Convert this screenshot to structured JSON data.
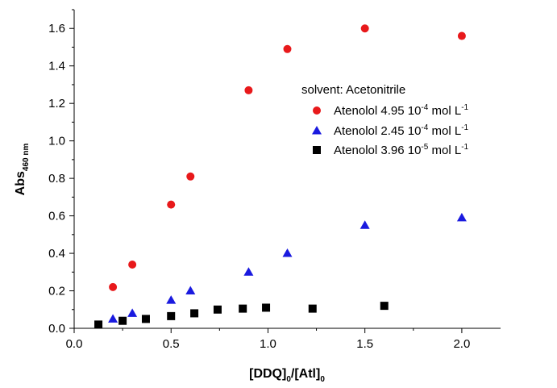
{
  "chart_data": {
    "type": "scatter",
    "xlabel": "[DDQ]",
    "xlabel_sub1": "0",
    "xlabel_mid": "/[Atl]",
    "xlabel_sub2": "0",
    "ylabel": "Abs",
    "ylabel_sub": "460 nm",
    "xlim": [
      0,
      2.2
    ],
    "ylim": [
      0,
      1.7
    ],
    "x_ticks": [
      {
        "value": 0.0,
        "label": "0.0"
      },
      {
        "value": 0.5,
        "label": "0.5"
      },
      {
        "value": 1.0,
        "label": "1.0"
      },
      {
        "value": 1.5,
        "label": "1.5"
      },
      {
        "value": 2.0,
        "label": "2.0"
      }
    ],
    "y_ticks": [
      {
        "value": 0.0,
        "label": "0.0"
      },
      {
        "value": 0.2,
        "label": "0.2"
      },
      {
        "value": 0.4,
        "label": "0.4"
      },
      {
        "value": 0.6,
        "label": "0.6"
      },
      {
        "value": 0.8,
        "label": "0.8"
      },
      {
        "value": 1.0,
        "label": "1.0"
      },
      {
        "value": 1.2,
        "label": "1.2"
      },
      {
        "value": 1.4,
        "label": "1.4"
      },
      {
        "value": 1.6,
        "label": "1.6"
      }
    ],
    "grid": false,
    "legend_placement": "right",
    "legend_title": "solvent: Acetonitrile",
    "series": [
      {
        "name": "Atenolol 4.95 10",
        "name_exp": "-4",
        "name_unit": " mol L",
        "name_unit_exp": "-1",
        "marker": "circle",
        "color": "#e8191b",
        "x": [
          0.2,
          0.3,
          0.5,
          0.6,
          0.9,
          1.1,
          1.5,
          2.0
        ],
        "y": [
          0.22,
          0.34,
          0.66,
          0.81,
          1.27,
          1.49,
          1.6,
          1.56
        ]
      },
      {
        "name": "Atenolol 2.45 10",
        "name_exp": "-4",
        "name_unit": " mol L",
        "name_unit_exp": "-1",
        "marker": "triangle",
        "color": "#1a1adf",
        "x": [
          0.2,
          0.3,
          0.5,
          0.6,
          0.9,
          1.1,
          1.5,
          2.0
        ],
        "y": [
          0.05,
          0.08,
          0.15,
          0.2,
          0.3,
          0.4,
          0.55,
          0.59
        ]
      },
      {
        "name": "Atenolol 3.96 10",
        "name_exp": "-5",
        "name_unit": " mol L",
        "name_unit_exp": "-1",
        "marker": "square",
        "color": "#000000",
        "x": [
          0.125,
          0.25,
          0.37,
          0.5,
          0.62,
          0.74,
          0.87,
          0.99,
          1.23,
          1.6
        ],
        "y": [
          0.02,
          0.04,
          0.05,
          0.065,
          0.08,
          0.1,
          0.105,
          0.11,
          0.105,
          0.12
        ]
      }
    ]
  }
}
